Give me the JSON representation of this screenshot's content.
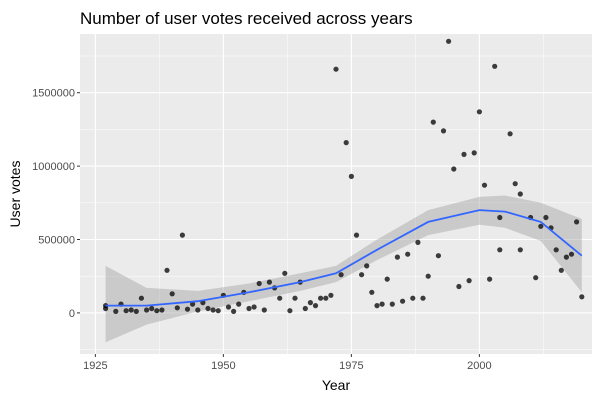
{
  "chart_data": {
    "type": "scatter",
    "title": "Number of user votes received across years",
    "xlabel": "Year",
    "ylabel": "User votes",
    "xlim": [
      1922,
      2022
    ],
    "ylim": [
      -280000,
      1900000
    ],
    "x_ticks": [
      1925,
      1950,
      1975,
      2000
    ],
    "y_ticks": [
      0,
      500000,
      1000000,
      1500000
    ],
    "x_tick_labels": [
      "1925",
      "1950",
      "1975",
      "2000"
    ],
    "y_tick_labels": [
      "0",
      "500000",
      "1000000",
      "1500000"
    ],
    "grid": true,
    "legend": "none",
    "colors": {
      "panel": "#ebebeb",
      "grid_major": "#ffffff",
      "points": "#000000",
      "smooth_line": "#3366ff",
      "ci_band": "#999999"
    },
    "points": [
      {
        "x": 1927,
        "y": 30000
      },
      {
        "x": 1927,
        "y": 50000
      },
      {
        "x": 1929,
        "y": 10000
      },
      {
        "x": 1930,
        "y": 60000
      },
      {
        "x": 1931,
        "y": 15000
      },
      {
        "x": 1932,
        "y": 20000
      },
      {
        "x": 1933,
        "y": 10000
      },
      {
        "x": 1934,
        "y": 100000
      },
      {
        "x": 1935,
        "y": 20000
      },
      {
        "x": 1936,
        "y": 30000
      },
      {
        "x": 1937,
        "y": 15000
      },
      {
        "x": 1938,
        "y": 20000
      },
      {
        "x": 1939,
        "y": 290000
      },
      {
        "x": 1940,
        "y": 130000
      },
      {
        "x": 1941,
        "y": 35000
      },
      {
        "x": 1942,
        "y": 530000
      },
      {
        "x": 1943,
        "y": 25000
      },
      {
        "x": 1944,
        "y": 60000
      },
      {
        "x": 1945,
        "y": 20000
      },
      {
        "x": 1946,
        "y": 70000
      },
      {
        "x": 1947,
        "y": 30000
      },
      {
        "x": 1948,
        "y": 20000
      },
      {
        "x": 1949,
        "y": 15000
      },
      {
        "x": 1950,
        "y": 120000
      },
      {
        "x": 1951,
        "y": 40000
      },
      {
        "x": 1952,
        "y": 10000
      },
      {
        "x": 1953,
        "y": 60000
      },
      {
        "x": 1954,
        "y": 140000
      },
      {
        "x": 1955,
        "y": 30000
      },
      {
        "x": 1956,
        "y": 40000
      },
      {
        "x": 1957,
        "y": 200000
      },
      {
        "x": 1958,
        "y": 20000
      },
      {
        "x": 1959,
        "y": 210000
      },
      {
        "x": 1960,
        "y": 170000
      },
      {
        "x": 1961,
        "y": 100000
      },
      {
        "x": 1962,
        "y": 270000
      },
      {
        "x": 1963,
        "y": 15000
      },
      {
        "x": 1964,
        "y": 100000
      },
      {
        "x": 1965,
        "y": 210000
      },
      {
        "x": 1966,
        "y": 30000
      },
      {
        "x": 1967,
        "y": 70000
      },
      {
        "x": 1968,
        "y": 50000
      },
      {
        "x": 1969,
        "y": 100000
      },
      {
        "x": 1970,
        "y": 100000
      },
      {
        "x": 1971,
        "y": 120000
      },
      {
        "x": 1972,
        "y": 1660000
      },
      {
        "x": 1973,
        "y": 260000
      },
      {
        "x": 1974,
        "y": 1160000
      },
      {
        "x": 1975,
        "y": 930000
      },
      {
        "x": 1976,
        "y": 530000
      },
      {
        "x": 1977,
        "y": 260000
      },
      {
        "x": 1978,
        "y": 320000
      },
      {
        "x": 1979,
        "y": 140000
      },
      {
        "x": 1980,
        "y": 50000
      },
      {
        "x": 1981,
        "y": 60000
      },
      {
        "x": 1982,
        "y": 230000
      },
      {
        "x": 1983,
        "y": 60000
      },
      {
        "x": 1984,
        "y": 380000
      },
      {
        "x": 1985,
        "y": 80000
      },
      {
        "x": 1986,
        "y": 400000
      },
      {
        "x": 1987,
        "y": 100000
      },
      {
        "x": 1988,
        "y": 480000
      },
      {
        "x": 1989,
        "y": 100000
      },
      {
        "x": 1990,
        "y": 250000
      },
      {
        "x": 1991,
        "y": 1300000
      },
      {
        "x": 1992,
        "y": 390000
      },
      {
        "x": 1993,
        "y": 1240000
      },
      {
        "x": 1994,
        "y": 1850000
      },
      {
        "x": 1995,
        "y": 980000
      },
      {
        "x": 1996,
        "y": 180000
      },
      {
        "x": 1997,
        "y": 1080000
      },
      {
        "x": 1998,
        "y": 220000
      },
      {
        "x": 1999,
        "y": 1090000
      },
      {
        "x": 2000,
        "y": 1370000
      },
      {
        "x": 2001,
        "y": 870000
      },
      {
        "x": 2002,
        "y": 230000
      },
      {
        "x": 2003,
        "y": 1680000
      },
      {
        "x": 2004,
        "y": 430000
      },
      {
        "x": 2004,
        "y": 650000
      },
      {
        "x": 2006,
        "y": 1220000
      },
      {
        "x": 2007,
        "y": 880000
      },
      {
        "x": 2008,
        "y": 810000
      },
      {
        "x": 2008,
        "y": 430000
      },
      {
        "x": 2010,
        "y": 650000
      },
      {
        "x": 2011,
        "y": 240000
      },
      {
        "x": 2012,
        "y": 590000
      },
      {
        "x": 2013,
        "y": 650000
      },
      {
        "x": 2014,
        "y": 580000
      },
      {
        "x": 2015,
        "y": 430000
      },
      {
        "x": 2016,
        "y": 290000
      },
      {
        "x": 2017,
        "y": 380000
      },
      {
        "x": 2018,
        "y": 400000
      },
      {
        "x": 2019,
        "y": 620000
      },
      {
        "x": 2020,
        "y": 110000
      }
    ],
    "smooth": {
      "x": [
        1927,
        1935,
        1945,
        1955,
        1965,
        1972,
        1980,
        1990,
        2000,
        2005,
        2012,
        2020
      ],
      "y": [
        50000,
        50000,
        80000,
        140000,
        210000,
        270000,
        430000,
        620000,
        700000,
        690000,
        620000,
        390000
      ],
      "ymin": [
        -200000,
        -80000,
        10000,
        80000,
        150000,
        210000,
        360000,
        530000,
        600000,
        580000,
        490000,
        140000
      ],
      "ymax": [
        320000,
        170000,
        150000,
        200000,
        270000,
        320000,
        500000,
        700000,
        790000,
        800000,
        750000,
        640000
      ]
    }
  }
}
